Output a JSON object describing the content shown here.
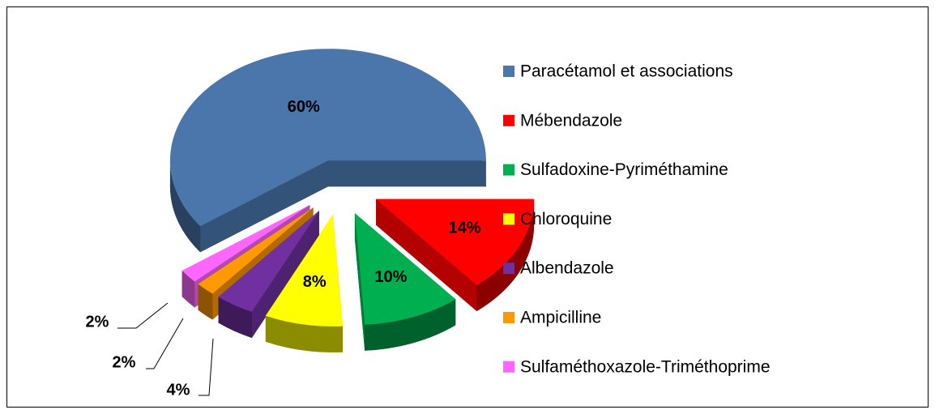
{
  "chart_data": {
    "type": "pie",
    "categories": [
      "Paracétamol et associations",
      "Mébendazole",
      "Sulfadoxine-Pyriméthamine",
      "Chloroquine",
      "Albendazole",
      "Ampicilline",
      "Sulfaméthoxazole-Triméthoprime"
    ],
    "values": [
      60,
      14,
      10,
      8,
      4,
      2,
      2
    ],
    "value_labels": [
      "60%",
      "14%",
      "10%",
      "8%",
      "4%",
      "2%",
      "2%"
    ],
    "colors": [
      "#4a76ab",
      "#ff0000",
      "#00b050",
      "#ffff00",
      "#7030a0",
      "#ff9900",
      "#ff66ff"
    ],
    "legend": "right"
  }
}
